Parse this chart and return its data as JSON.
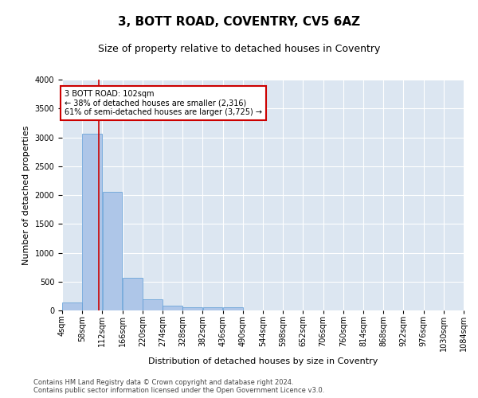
{
  "title": "3, BOTT ROAD, COVENTRY, CV5 6AZ",
  "subtitle": "Size of property relative to detached houses in Coventry",
  "xlabel": "Distribution of detached houses by size in Coventry",
  "ylabel": "Number of detached properties",
  "bar_color": "#aec6e8",
  "bar_edge_color": "#5b9bd5",
  "background_color": "#dce6f1",
  "grid_color": "white",
  "vline_x": 102,
  "vline_color": "#cc0000",
  "annotation_text": "3 BOTT ROAD: 102sqm\n← 38% of detached houses are smaller (2,316)\n61% of semi-detached houses are larger (3,725) →",
  "annotation_box_color": "#cc0000",
  "bin_edges": [
    4,
    58,
    112,
    166,
    220,
    274,
    328,
    382,
    436,
    490,
    544,
    598,
    652,
    706,
    760,
    814,
    868,
    922,
    976,
    1030,
    1084
  ],
  "bar_heights": [
    140,
    3060,
    2060,
    560,
    200,
    80,
    60,
    50,
    50,
    0,
    0,
    0,
    0,
    0,
    0,
    0,
    0,
    0,
    0,
    0
  ],
  "tick_labels": [
    "4sqm",
    "58sqm",
    "112sqm",
    "166sqm",
    "220sqm",
    "274sqm",
    "328sqm",
    "382sqm",
    "436sqm",
    "490sqm",
    "544sqm",
    "598sqm",
    "652sqm",
    "706sqm",
    "760sqm",
    "814sqm",
    "868sqm",
    "922sqm",
    "976sqm",
    "1030sqm",
    "1084sqm"
  ],
  "ylim": [
    0,
    4000
  ],
  "yticks": [
    0,
    500,
    1000,
    1500,
    2000,
    2500,
    3000,
    3500,
    4000
  ],
  "footer_text": "Contains HM Land Registry data © Crown copyright and database right 2024.\nContains public sector information licensed under the Open Government Licence v3.0.",
  "title_fontsize": 11,
  "subtitle_fontsize": 9,
  "label_fontsize": 8,
  "tick_fontsize": 7,
  "footer_fontsize": 6
}
